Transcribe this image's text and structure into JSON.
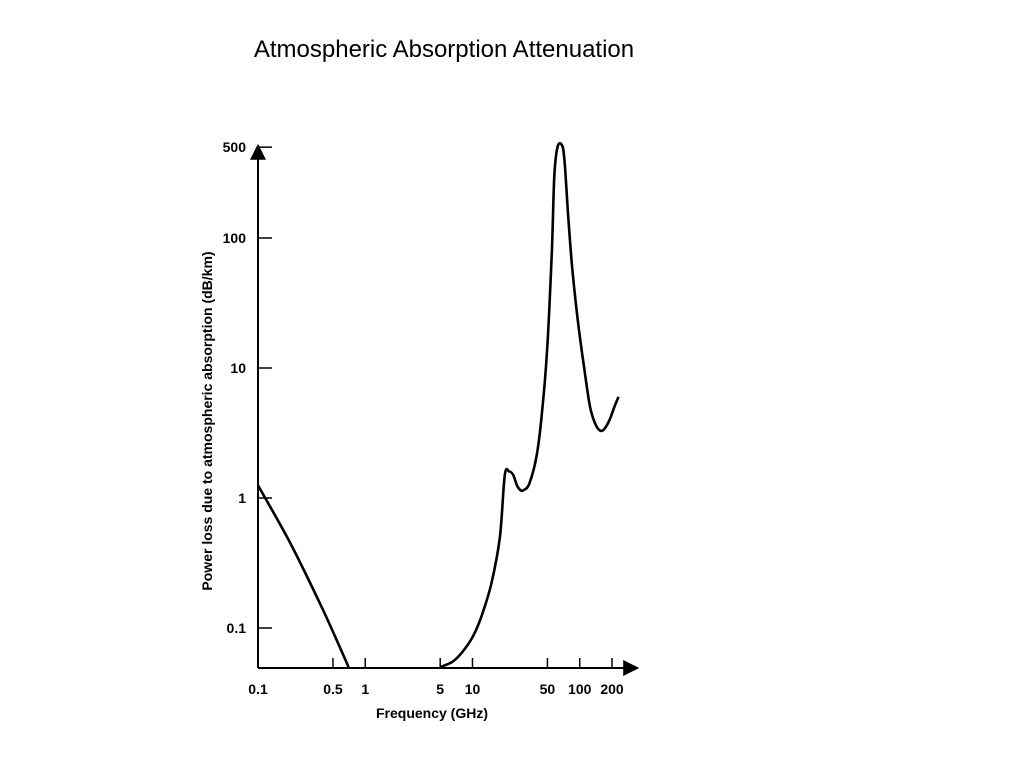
{
  "title": "Atmospheric Absorption Attenuation",
  "chart_data": {
    "type": "line",
    "title": "Atmospheric Absorption Attenuation",
    "xlabel": "Frequency (GHz)",
    "ylabel": "Power loss due to atmospheric absorption (dB/km)",
    "xscale": "log",
    "yscale": "log",
    "xlim": [
      0.1,
      300
    ],
    "ylim": [
      0.05,
      800
    ],
    "x_ticks": [
      0.1,
      0.5,
      1,
      5,
      10,
      50,
      100,
      200
    ],
    "x_tick_labels": [
      "0.1",
      "0.5",
      "1",
      "5",
      "10",
      "50",
      "100",
      "200"
    ],
    "y_ticks": [
      0.1,
      1,
      10,
      100,
      500
    ],
    "y_tick_labels": [
      "0.1",
      "1",
      "10",
      "100",
      "500"
    ],
    "grid": false,
    "series": [
      {
        "points": [
          [
            0.1,
            1.25
          ],
          [
            0.2,
            0.45
          ],
          [
            0.4,
            0.14
          ],
          [
            0.7,
            0.05
          ]
        ]
      },
      {
        "points": [
          [
            5,
            0.05
          ],
          [
            6.5,
            0.055
          ],
          [
            8,
            0.065
          ],
          [
            10,
            0.085
          ],
          [
            12,
            0.12
          ],
          [
            15,
            0.22
          ],
          [
            18,
            0.5
          ],
          [
            20,
            1.5
          ],
          [
            22,
            1.6
          ],
          [
            24,
            1.5
          ],
          [
            26,
            1.25
          ],
          [
            28,
            1.15
          ],
          [
            30,
            1.15
          ],
          [
            34,
            1.3
          ],
          [
            40,
            2.2
          ],
          [
            45,
            5
          ],
          [
            50,
            15
          ],
          [
            55,
            80
          ],
          [
            58,
            300
          ],
          [
            62,
            500
          ],
          [
            68,
            520
          ],
          [
            72,
            400
          ],
          [
            78,
            150
          ],
          [
            85,
            60
          ],
          [
            95,
            25
          ],
          [
            110,
            10
          ],
          [
            125,
            5
          ],
          [
            140,
            3.7
          ],
          [
            155,
            3.3
          ],
          [
            170,
            3.4
          ],
          [
            190,
            4
          ],
          [
            210,
            5
          ],
          [
            230,
            6
          ]
        ]
      }
    ]
  }
}
